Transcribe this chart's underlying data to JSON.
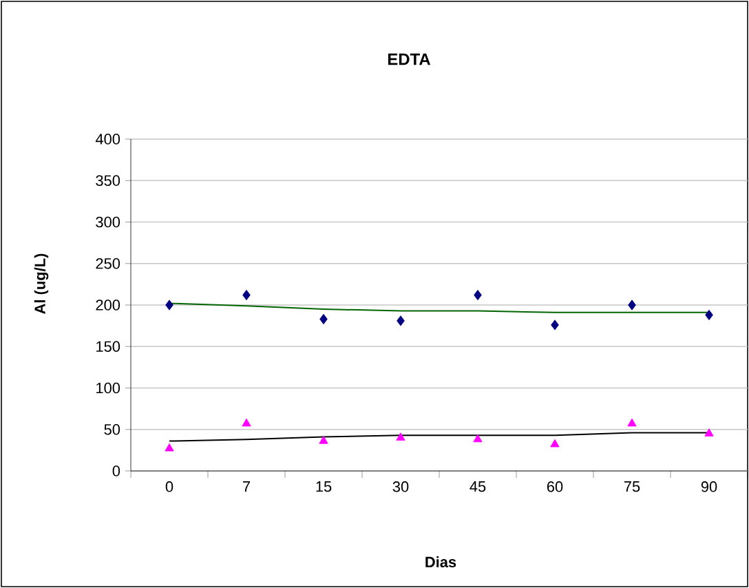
{
  "chart_data": {
    "type": "scatter",
    "title": "EDTA",
    "xlabel": "Dias",
    "ylabel": "Al (ug/L)",
    "categories": [
      "0",
      "7",
      "15",
      "30",
      "45",
      "60",
      "75",
      "90"
    ],
    "series": [
      {
        "color": "#000080",
        "marker": "diamond",
        "values": [
          200,
          212,
          183,
          181,
          212,
          176,
          200,
          188
        ]
      },
      {
        "color": "#ff00ff",
        "marker": "triangle",
        "values": [
          27,
          57,
          36,
          40,
          38,
          32,
          57,
          45
        ]
      },
      {
        "type": "line",
        "color": "#006400",
        "marker": "none",
        "values": [
          202,
          199,
          195,
          193,
          193,
          191,
          191,
          191
        ]
      },
      {
        "type": "line",
        "color": "#000000",
        "marker": "none",
        "values": [
          36,
          38,
          41,
          43,
          43,
          43,
          46,
          46
        ]
      }
    ],
    "ylim": [
      0,
      400
    ],
    "yticks": [
      0,
      50,
      100,
      150,
      200,
      250,
      300,
      350,
      400
    ],
    "grid": "y"
  }
}
